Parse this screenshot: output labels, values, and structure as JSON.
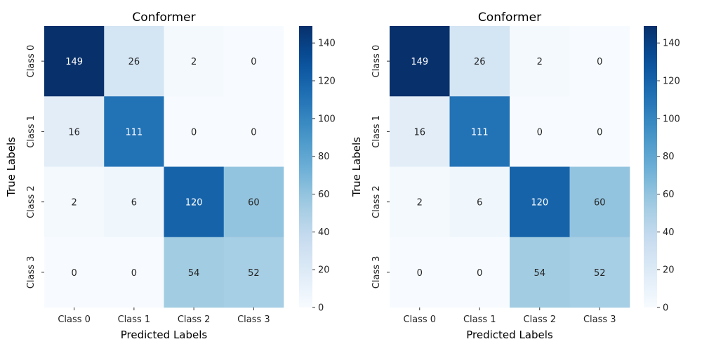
{
  "chart_data": [
    {
      "type": "heatmap",
      "title": "Conformer",
      "xlabel": "Predicted Labels",
      "ylabel": "True Labels",
      "x_categories": [
        "Class 0",
        "Class 1",
        "Class 2",
        "Class 3"
      ],
      "y_categories": [
        "Class 0",
        "Class 1",
        "Class 2",
        "Class 3"
      ],
      "values": [
        [
          149,
          26,
          2,
          0
        ],
        [
          16,
          111,
          0,
          0
        ],
        [
          2,
          6,
          120,
          60
        ],
        [
          0,
          0,
          54,
          52
        ]
      ],
      "colorbar": {
        "min": 0,
        "max": 149,
        "ticks": [
          0,
          20,
          40,
          60,
          80,
          100,
          120,
          140
        ]
      },
      "colormap": [
        "#f7fbff",
        "#deebf7",
        "#c6dbef",
        "#9ecae1",
        "#6baed6",
        "#4292c6",
        "#2171b5",
        "#08519c",
        "#08306b"
      ]
    },
    {
      "type": "heatmap",
      "title": "Conformer",
      "xlabel": "Predicted Labels",
      "ylabel": "True Labels",
      "x_categories": [
        "Class 0",
        "Class 1",
        "Class 2",
        "Class 3"
      ],
      "y_categories": [
        "Class 0",
        "Class 1",
        "Class 2",
        "Class 3"
      ],
      "values": [
        [
          149,
          26,
          2,
          0
        ],
        [
          16,
          111,
          0,
          0
        ],
        [
          2,
          6,
          120,
          60
        ],
        [
          0,
          0,
          54,
          52
        ]
      ],
      "colorbar": {
        "min": 0,
        "max": 149,
        "ticks": [
          0,
          20,
          40,
          60,
          80,
          100,
          120,
          140
        ]
      },
      "colormap": [
        "#f7fbff",
        "#deebf7",
        "#c6dbef",
        "#9ecae1",
        "#6baed6",
        "#4292c6",
        "#2171b5",
        "#08519c",
        "#08306b"
      ]
    }
  ]
}
